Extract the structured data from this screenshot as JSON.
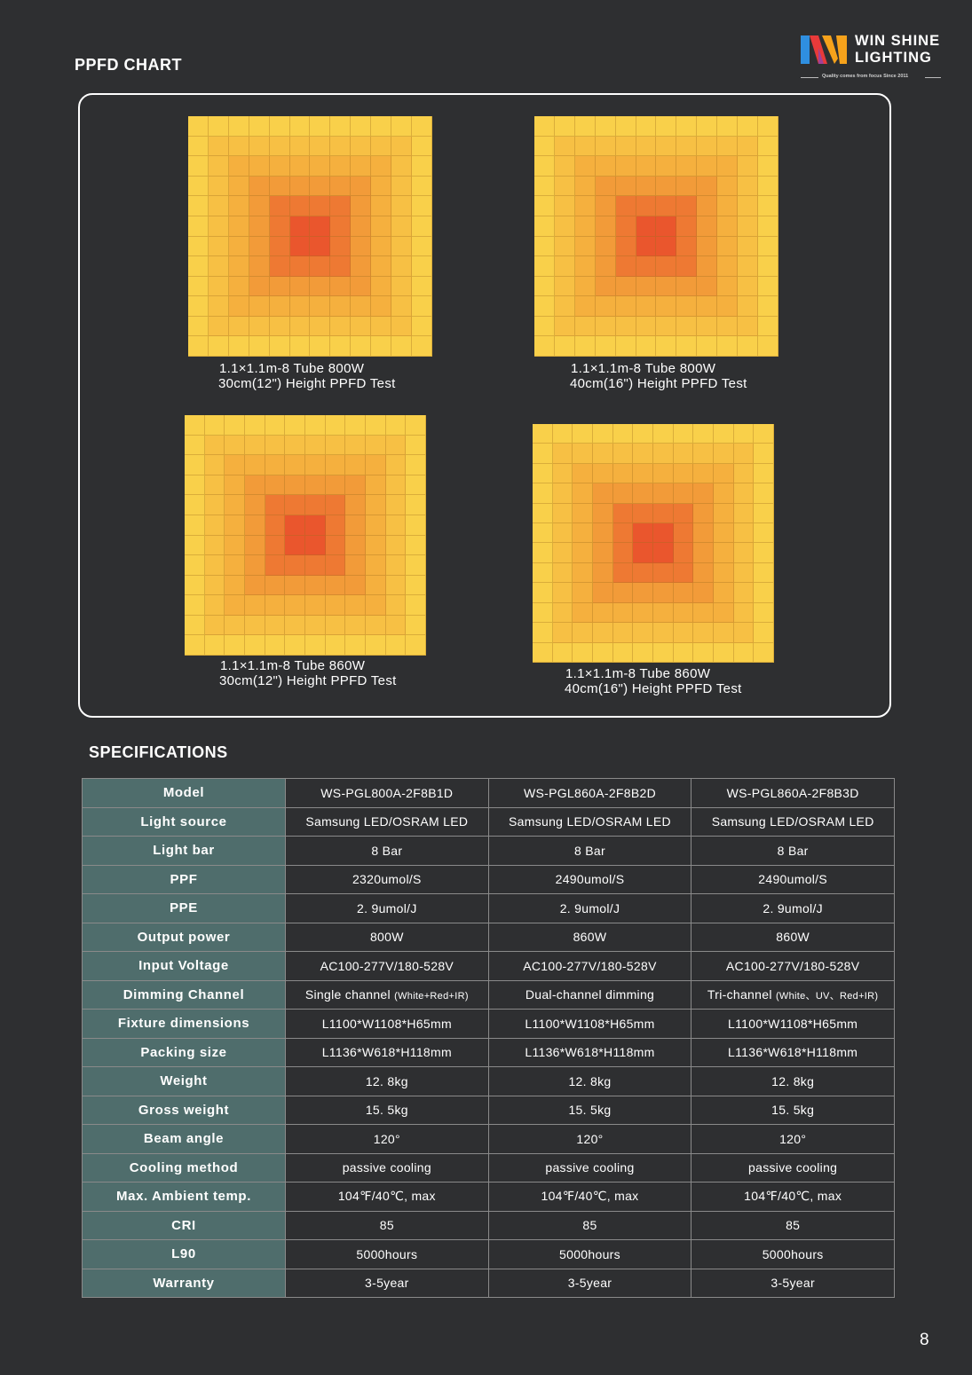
{
  "header": {
    "section_title": "PPFD CHART",
    "logo": {
      "line1": "WIN SHINE",
      "line2": "LIGHTING",
      "tagline": "Quality comes from focus   Since 2011",
      "colors": [
        "#2f8fe0",
        "#e83a3a",
        "#f6a21b"
      ]
    }
  },
  "ppfd_charts": [
    {
      "caption_line1": "1.1×1.1m-8 Tube   800W",
      "caption_line2": "30cm(12\") Height PPFD Test",
      "grid_rows": 12,
      "grid_cols": 12
    },
    {
      "caption_line1": "1.1×1.1m-8 Tube     800W",
      "caption_line2": "40cm(16\") Height PPFD Test",
      "grid_rows": 12,
      "grid_cols": 12
    },
    {
      "caption_line1": "1.1×1.1m-8 Tube   860W",
      "caption_line2": "30cm(12\") Height PPFD Test",
      "grid_rows": 12,
      "grid_cols": 12
    },
    {
      "caption_line1": "1.1×1.1m-8 Tube     860W",
      "caption_line2": "40cm(16\") Height PPFD Test",
      "grid_rows": 12,
      "grid_cols": 12
    }
  ],
  "heatmap_colors": {
    "low": "#f9d04a",
    "mid": "#f3a43a",
    "high": "#e8452a"
  },
  "specifications": {
    "title": "SPECIFICATIONS",
    "rows": [
      {
        "label": "Model",
        "values": [
          "WS-PGL800A-2F8B1D",
          "WS-PGL860A-2F8B2D",
          "WS-PGL860A-2F8B3D"
        ]
      },
      {
        "label": "Light source",
        "values": [
          "Samsung LED/OSRAM LED",
          "Samsung LED/OSRAM LED",
          "Samsung LED/OSRAM LED"
        ]
      },
      {
        "label": "Light bar",
        "values": [
          "8 Bar",
          "8 Bar",
          "8 Bar"
        ]
      },
      {
        "label": "PPF",
        "values": [
          "2320umol/S",
          "2490umol/S",
          "2490umol/S"
        ]
      },
      {
        "label": "PPE",
        "values": [
          "2. 9umol/J",
          "2. 9umol/J",
          "2. 9umol/J"
        ]
      },
      {
        "label": "Output power",
        "values": [
          "800W",
          "860W",
          "860W"
        ]
      },
      {
        "label": "Input Voltage",
        "values": [
          "AC100-277V/180-528V",
          "AC100-277V/180-528V",
          "AC100-277V/180-528V"
        ]
      },
      {
        "label": "Dimming Channel",
        "values": [
          "Single channel",
          "Dual-channel dimming",
          "Tri-channel"
        ],
        "notes": [
          "(White+Red+IR)",
          "",
          "(White、UV、Red+IR)"
        ]
      },
      {
        "label": "Fixture dimensions",
        "values": [
          "L1100*W1108*H65mm",
          "L1100*W1108*H65mm",
          "L1100*W1108*H65mm"
        ]
      },
      {
        "label": "Packing size",
        "values": [
          "L1136*W618*H118mm",
          "L1136*W618*H118mm",
          "L1136*W618*H118mm"
        ]
      },
      {
        "label": "Weight",
        "values": [
          "12. 8kg",
          "12. 8kg",
          "12. 8kg"
        ]
      },
      {
        "label": "Gross weight",
        "values": [
          "15. 5kg",
          "15. 5kg",
          "15. 5kg"
        ]
      },
      {
        "label": "Beam angle",
        "values": [
          "120°",
          "120°",
          "120°"
        ]
      },
      {
        "label": "Cooling method",
        "values": [
          "passive cooling",
          "passive cooling",
          "passive cooling"
        ]
      },
      {
        "label": "Max. Ambient temp.",
        "values": [
          "104℉/40℃, max",
          "104℉/40℃, max",
          "104℉/40℃, max"
        ]
      },
      {
        "label": "CRI",
        "values": [
          "85",
          "85",
          "85"
        ]
      },
      {
        "label": "L90",
        "values": [
          "5000hours",
          "5000hours",
          "5000hours"
        ]
      },
      {
        "label": "Warranty",
        "values": [
          "3-5year",
          "3-5year",
          "3-5year"
        ]
      }
    ]
  },
  "page_number": "8"
}
